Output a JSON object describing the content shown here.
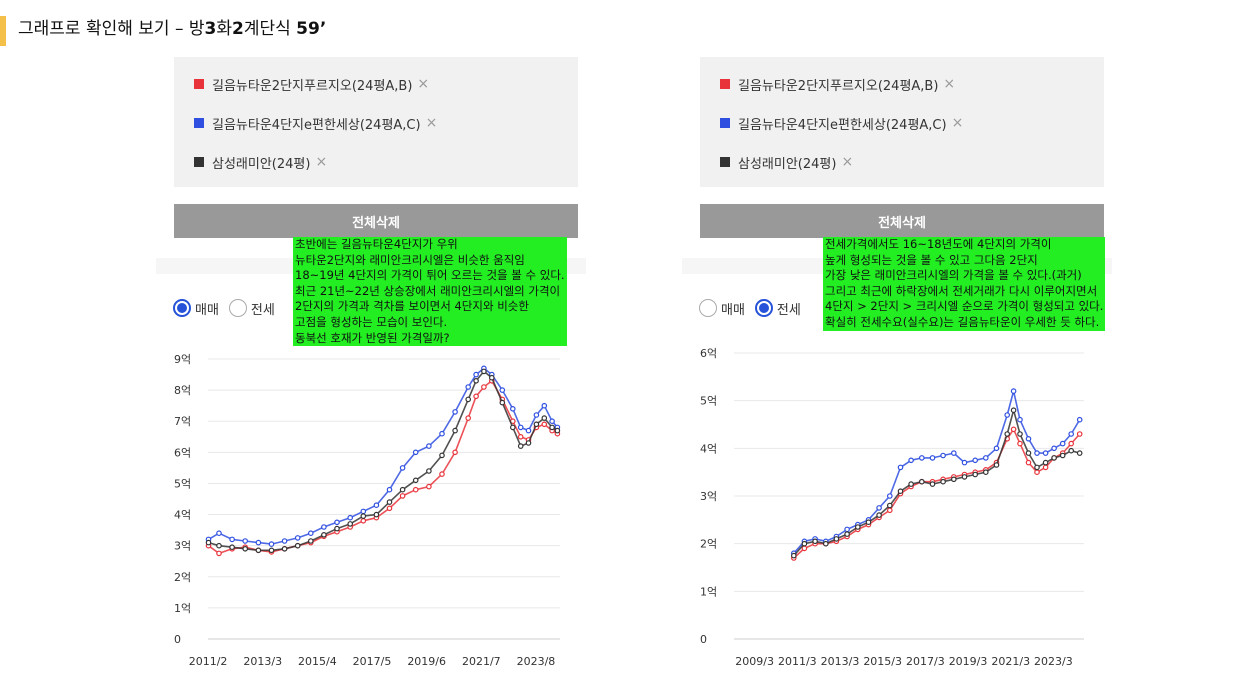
{
  "header": {
    "title_prefix": "그래프로 확인해 보기 – 방",
    "title_bold_1": "3",
    "title_mid": "화",
    "title_bold_2": "2",
    "title_suffix": "계단식 ",
    "title_bold_3": "59’"
  },
  "colors": {
    "red": "#e8333a",
    "blue": "#2f4fe0",
    "black": "#333333",
    "accent": "#f5c04a",
    "note_bg": "#22ee22",
    "selected_radio": "#2552d9"
  },
  "panels": [
    {
      "legend": [
        {
          "label": "길음뉴타운2단지푸르지오(24평A,B)",
          "color": "#e8333a",
          "remove": "×"
        },
        {
          "label": "길음뉴타운4단지e편한세상(24평A,C)",
          "color": "#2f4fe0",
          "remove": "×"
        },
        {
          "label": "삼성래미안(24평)",
          "color": "#333333",
          "remove": "×"
        }
      ],
      "delete_label": "전체삭제",
      "radio": {
        "sale": "매매",
        "rent": "전세",
        "selected": "sale"
      },
      "note": "초반에는 길음뉴타운4단지가 우위\n뉴타운2단지와 래미안크리시엘은 비슷한 움직임\n18~19년 4단지의 가격이 튀어 오르는 것을 볼 수 있다.\n최근 21년~22년 상승장에서 래미안크리시엘의 가격이\n2단지의 가격과 격차를 보이면서 4단지와 비슷한\n고점을 형성하는 모습이 보인다.\n동북선 호재가 반영된 가격일까?"
    },
    {
      "legend": [
        {
          "label": "길음뉴타운2단지푸르지오(24평A,B)",
          "color": "#e8333a",
          "remove": "×"
        },
        {
          "label": "길음뉴타운4단지e편한세상(24평A,C)",
          "color": "#2f4fe0",
          "remove": "×"
        },
        {
          "label": "삼성래미안(24평)",
          "color": "#333333",
          "remove": "×"
        }
      ],
      "delete_label": "전체삭제",
      "radio": {
        "sale": "매매",
        "rent": "전세",
        "selected": "rent"
      },
      "note": "전세가격에서도 16~18년도에 4단지의 가격이\n높게 형성되는 것을 볼 수 있고 그다음 2단지\n가장 낮은 래미안크리시엘의 가격을 볼 수 있다.(과거)\n그리고 최근에 하락장에서 전세거래가 다시 이루어지면서\n4단지 > 2단지 > 크리시엘 순으로 가격이 형성되고 있다.\n확실히 전세수요(실수요)는 길음뉴타운이 우세한 듯 하다."
    }
  ],
  "chart_data": [
    {
      "type": "line",
      "title": "",
      "xlabel": "",
      "ylabel": "",
      "x_ticks": [
        "2011/2",
        "2013/3",
        "2015/4",
        "2017/5",
        "2019/6",
        "2021/7",
        "2023/8"
      ],
      "y_ticks": [
        "0",
        "1억",
        "2억",
        "3억",
        "4억",
        "5억",
        "6억",
        "7억",
        "8억",
        "9억"
      ],
      "xlim": [
        2011.08,
        2024.5
      ],
      "ylim": [
        0,
        9
      ],
      "unit": "억",
      "grid": true,
      "series": [
        {
          "name": "길음뉴타운2단지푸르지오(24평A,B)",
          "color": "#e8333a",
          "x": [
            2011.1,
            2011.5,
            2012.0,
            2012.5,
            2013.0,
            2013.5,
            2014.0,
            2014.5,
            2015.0,
            2015.5,
            2016.0,
            2016.5,
            2017.0,
            2017.5,
            2018.0,
            2018.5,
            2019.0,
            2019.5,
            2020.0,
            2020.5,
            2021.0,
            2021.3,
            2021.6,
            2021.9,
            2022.3,
            2022.7,
            2023.0,
            2023.3,
            2023.6,
            2023.9,
            2024.2,
            2024.4
          ],
          "y": [
            3.0,
            2.75,
            2.9,
            2.95,
            2.85,
            2.8,
            2.9,
            3.0,
            3.1,
            3.3,
            3.45,
            3.6,
            3.8,
            3.9,
            4.2,
            4.6,
            4.8,
            4.9,
            5.3,
            6.0,
            7.1,
            7.8,
            8.1,
            8.3,
            7.7,
            7.0,
            6.5,
            6.4,
            6.8,
            6.9,
            6.7,
            6.6
          ]
        },
        {
          "name": "길음뉴타운4단지e편한세상(24평A,C)",
          "color": "#2f4fe0",
          "x": [
            2011.1,
            2011.5,
            2012.0,
            2012.5,
            2013.0,
            2013.5,
            2014.0,
            2014.5,
            2015.0,
            2015.5,
            2016.0,
            2016.5,
            2017.0,
            2017.5,
            2018.0,
            2018.5,
            2019.0,
            2019.5,
            2020.0,
            2020.5,
            2021.0,
            2021.3,
            2021.6,
            2021.9,
            2022.3,
            2022.7,
            2023.0,
            2023.3,
            2023.6,
            2023.9,
            2024.2,
            2024.4
          ],
          "y": [
            3.2,
            3.4,
            3.2,
            3.15,
            3.1,
            3.05,
            3.15,
            3.25,
            3.4,
            3.6,
            3.75,
            3.9,
            4.1,
            4.3,
            4.8,
            5.5,
            6.0,
            6.2,
            6.6,
            7.3,
            8.1,
            8.5,
            8.7,
            8.5,
            8.0,
            7.4,
            6.8,
            6.7,
            7.2,
            7.5,
            7.0,
            6.8
          ]
        },
        {
          "name": "삼성래미안(24평)",
          "color": "#333333",
          "x": [
            2011.1,
            2011.5,
            2012.0,
            2012.5,
            2013.0,
            2013.5,
            2014.0,
            2014.5,
            2015.0,
            2015.5,
            2016.0,
            2016.5,
            2017.0,
            2017.5,
            2018.0,
            2018.5,
            2019.0,
            2019.5,
            2020.0,
            2020.5,
            2021.0,
            2021.3,
            2021.6,
            2021.9,
            2022.3,
            2022.7,
            2023.0,
            2023.3,
            2023.6,
            2023.9,
            2024.2,
            2024.4
          ],
          "y": [
            3.1,
            3.0,
            2.95,
            2.9,
            2.85,
            2.85,
            2.9,
            3.0,
            3.15,
            3.35,
            3.55,
            3.7,
            3.95,
            4.0,
            4.4,
            4.8,
            5.1,
            5.4,
            5.9,
            6.7,
            7.7,
            8.3,
            8.6,
            8.4,
            7.6,
            6.8,
            6.2,
            6.3,
            6.9,
            7.1,
            6.8,
            6.7
          ]
        }
      ]
    },
    {
      "type": "line",
      "title": "",
      "xlabel": "",
      "ylabel": "",
      "x_ticks": [
        "2009/3",
        "2011/3",
        "2013/3",
        "2015/3",
        "2017/3",
        "2019/3",
        "2021/3",
        "2023/3"
      ],
      "y_ticks": [
        "0",
        "1억",
        "2억",
        "3억",
        "4억",
        "5억",
        "6억"
      ],
      "xlim": [
        2008.2,
        2024.6
      ],
      "ylim": [
        0,
        6
      ],
      "unit": "억",
      "grid": true,
      "series": [
        {
          "name": "길음뉴타운2단지푸르지오(24평A,B)",
          "color": "#e8333a",
          "x": [
            2011.0,
            2011.5,
            2012.0,
            2012.5,
            2013.0,
            2013.5,
            2014.0,
            2014.5,
            2015.0,
            2015.5,
            2016.0,
            2016.5,
            2017.0,
            2017.5,
            2018.0,
            2018.5,
            2019.0,
            2019.5,
            2020.0,
            2020.5,
            2021.0,
            2021.3,
            2021.6,
            2022.0,
            2022.4,
            2022.8,
            2023.2,
            2023.6,
            2024.0,
            2024.4
          ],
          "y": [
            1.7,
            1.9,
            2.0,
            2.0,
            2.05,
            2.15,
            2.3,
            2.4,
            2.55,
            2.7,
            3.05,
            3.2,
            3.3,
            3.3,
            3.35,
            3.4,
            3.45,
            3.5,
            3.55,
            3.7,
            4.2,
            4.4,
            4.1,
            3.7,
            3.5,
            3.6,
            3.8,
            3.9,
            4.1,
            4.3
          ]
        },
        {
          "name": "길음뉴타운4단지e편한세상(24평A,C)",
          "color": "#2f4fe0",
          "x": [
            2011.0,
            2011.5,
            2012.0,
            2012.5,
            2013.0,
            2013.5,
            2014.0,
            2014.5,
            2015.0,
            2015.5,
            2016.0,
            2016.5,
            2017.0,
            2017.5,
            2018.0,
            2018.5,
            2019.0,
            2019.5,
            2020.0,
            2020.5,
            2021.0,
            2021.3,
            2021.6,
            2022.0,
            2022.4,
            2022.8,
            2023.2,
            2023.6,
            2024.0,
            2024.4
          ],
          "y": [
            1.8,
            2.05,
            2.1,
            2.05,
            2.15,
            2.3,
            2.4,
            2.5,
            2.75,
            3.0,
            3.6,
            3.75,
            3.8,
            3.8,
            3.85,
            3.9,
            3.7,
            3.75,
            3.8,
            4.0,
            4.7,
            5.2,
            4.6,
            4.2,
            3.9,
            3.9,
            4.0,
            4.1,
            4.3,
            4.6
          ]
        },
        {
          "name": "삼성래미안(24평)",
          "color": "#333333",
          "x": [
            2011.0,
            2011.5,
            2012.0,
            2012.5,
            2013.0,
            2013.5,
            2014.0,
            2014.5,
            2015.0,
            2015.5,
            2016.0,
            2016.5,
            2017.0,
            2017.5,
            2018.0,
            2018.5,
            2019.0,
            2019.5,
            2020.0,
            2020.5,
            2021.0,
            2021.3,
            2021.6,
            2022.0,
            2022.4,
            2022.8,
            2023.2,
            2023.6,
            2024.0,
            2024.4
          ],
          "y": [
            1.75,
            2.0,
            2.05,
            2.0,
            2.1,
            2.2,
            2.35,
            2.45,
            2.6,
            2.8,
            3.1,
            3.25,
            3.3,
            3.25,
            3.3,
            3.35,
            3.4,
            3.45,
            3.5,
            3.65,
            4.3,
            4.8,
            4.3,
            3.9,
            3.6,
            3.7,
            3.8,
            3.85,
            3.95,
            3.9
          ]
        }
      ]
    }
  ]
}
